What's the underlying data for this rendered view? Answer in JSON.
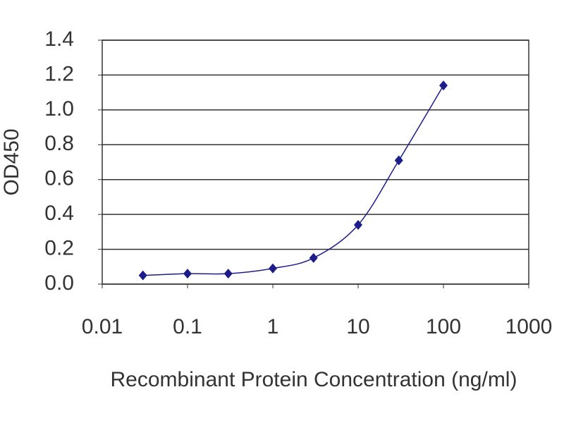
{
  "chart_data": {
    "type": "line",
    "x_label": "Recombinant Protein Concentration (ng/ml)",
    "y_label": "OD450",
    "x": [
      0.03,
      0.1,
      0.3,
      1,
      3,
      10,
      30,
      100
    ],
    "values": [
      0.05,
      0.06,
      0.06,
      0.09,
      0.15,
      0.34,
      0.71,
      1.14
    ],
    "color": "#1c1c8a",
    "x_scale": "log",
    "xlim": [
      0.01,
      1000
    ],
    "xticks": [
      0.01,
      0.1,
      1,
      10,
      100,
      1000
    ],
    "ylim": [
      0,
      1.4
    ],
    "yticks": [
      {
        "value": 0,
        "label": "0.0"
      },
      0.2,
      0.4,
      0.6,
      0.8,
      {
        "value": 1,
        "label": "1.0"
      },
      1.2,
      1.4
    ],
    "grid": true
  }
}
